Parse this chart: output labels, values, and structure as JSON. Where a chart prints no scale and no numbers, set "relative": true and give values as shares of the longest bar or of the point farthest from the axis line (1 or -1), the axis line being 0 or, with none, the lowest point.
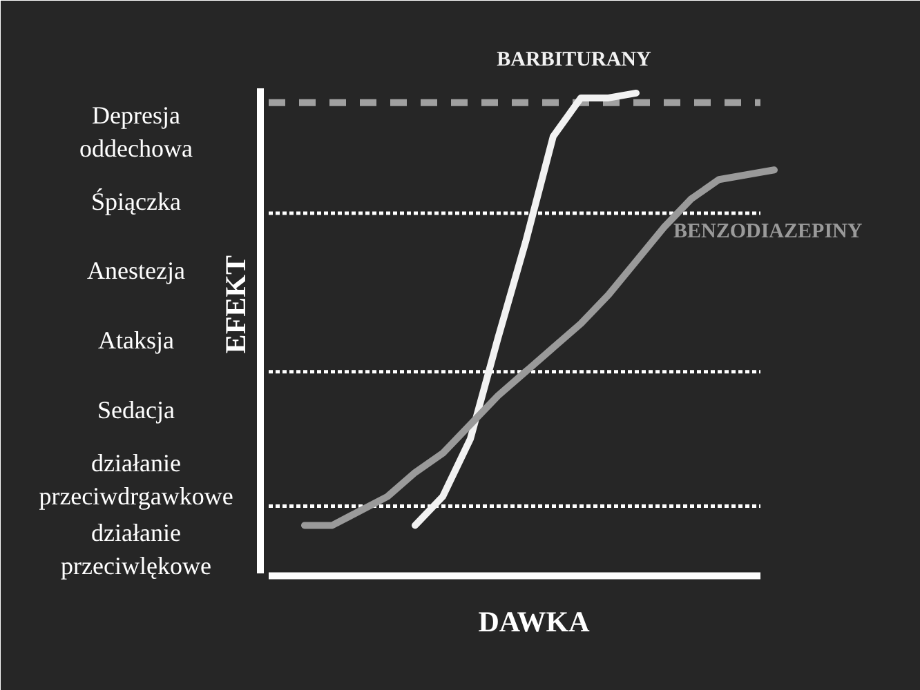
{
  "chart_data": {
    "type": "line",
    "relative": true,
    "xlabel": "DAWKA",
    "ylabel": "EFEKT",
    "categories": [
      null,
      null,
      null,
      null,
      null,
      null,
      null,
      null,
      null,
      null,
      null,
      null,
      null,
      null,
      null,
      null,
      null,
      null,
      null
    ],
    "series": [
      {
        "name": "BARBITURANY",
        "color": "#f2f2f2",
        "values": [
          null,
          null,
          null,
          null,
          null,
          0.1,
          0.16,
          0.28,
          0.49,
          0.69,
          0.91,
          0.99,
          0.99,
          1.0,
          null,
          null,
          null,
          null,
          null
        ]
      },
      {
        "name": "BENZODIAZEPINY",
        "color": "#9a9a9a",
        "values": [
          null,
          0.1,
          0.1,
          0.13,
          0.16,
          0.21,
          0.25,
          0.31,
          0.37,
          0.42,
          0.47,
          0.52,
          0.58,
          0.65,
          0.72,
          0.78,
          0.82,
          0.83,
          0.84
        ]
      }
    ],
    "ref_lines": [
      {
        "axis": "y",
        "value": 0.98,
        "color": "#a0a0a0",
        "line_style": "dashed"
      },
      {
        "axis": "y",
        "value": 0.75,
        "color": "#ffffff",
        "line_style": "dotted"
      },
      {
        "axis": "y",
        "value": 0.42,
        "color": "#ffffff",
        "line_style": "dotted"
      },
      {
        "axis": "y",
        "value": 0.14,
        "color": "#ffffff",
        "line_style": "dotted"
      }
    ],
    "annotations": [
      "Depresja oddechowa",
      "Śpiączka",
      "Anestezja",
      "Ataksja",
      "Sedacja",
      "działanie przeciwdrgawkowe",
      "działanie przeciwlękowe"
    ]
  }
}
